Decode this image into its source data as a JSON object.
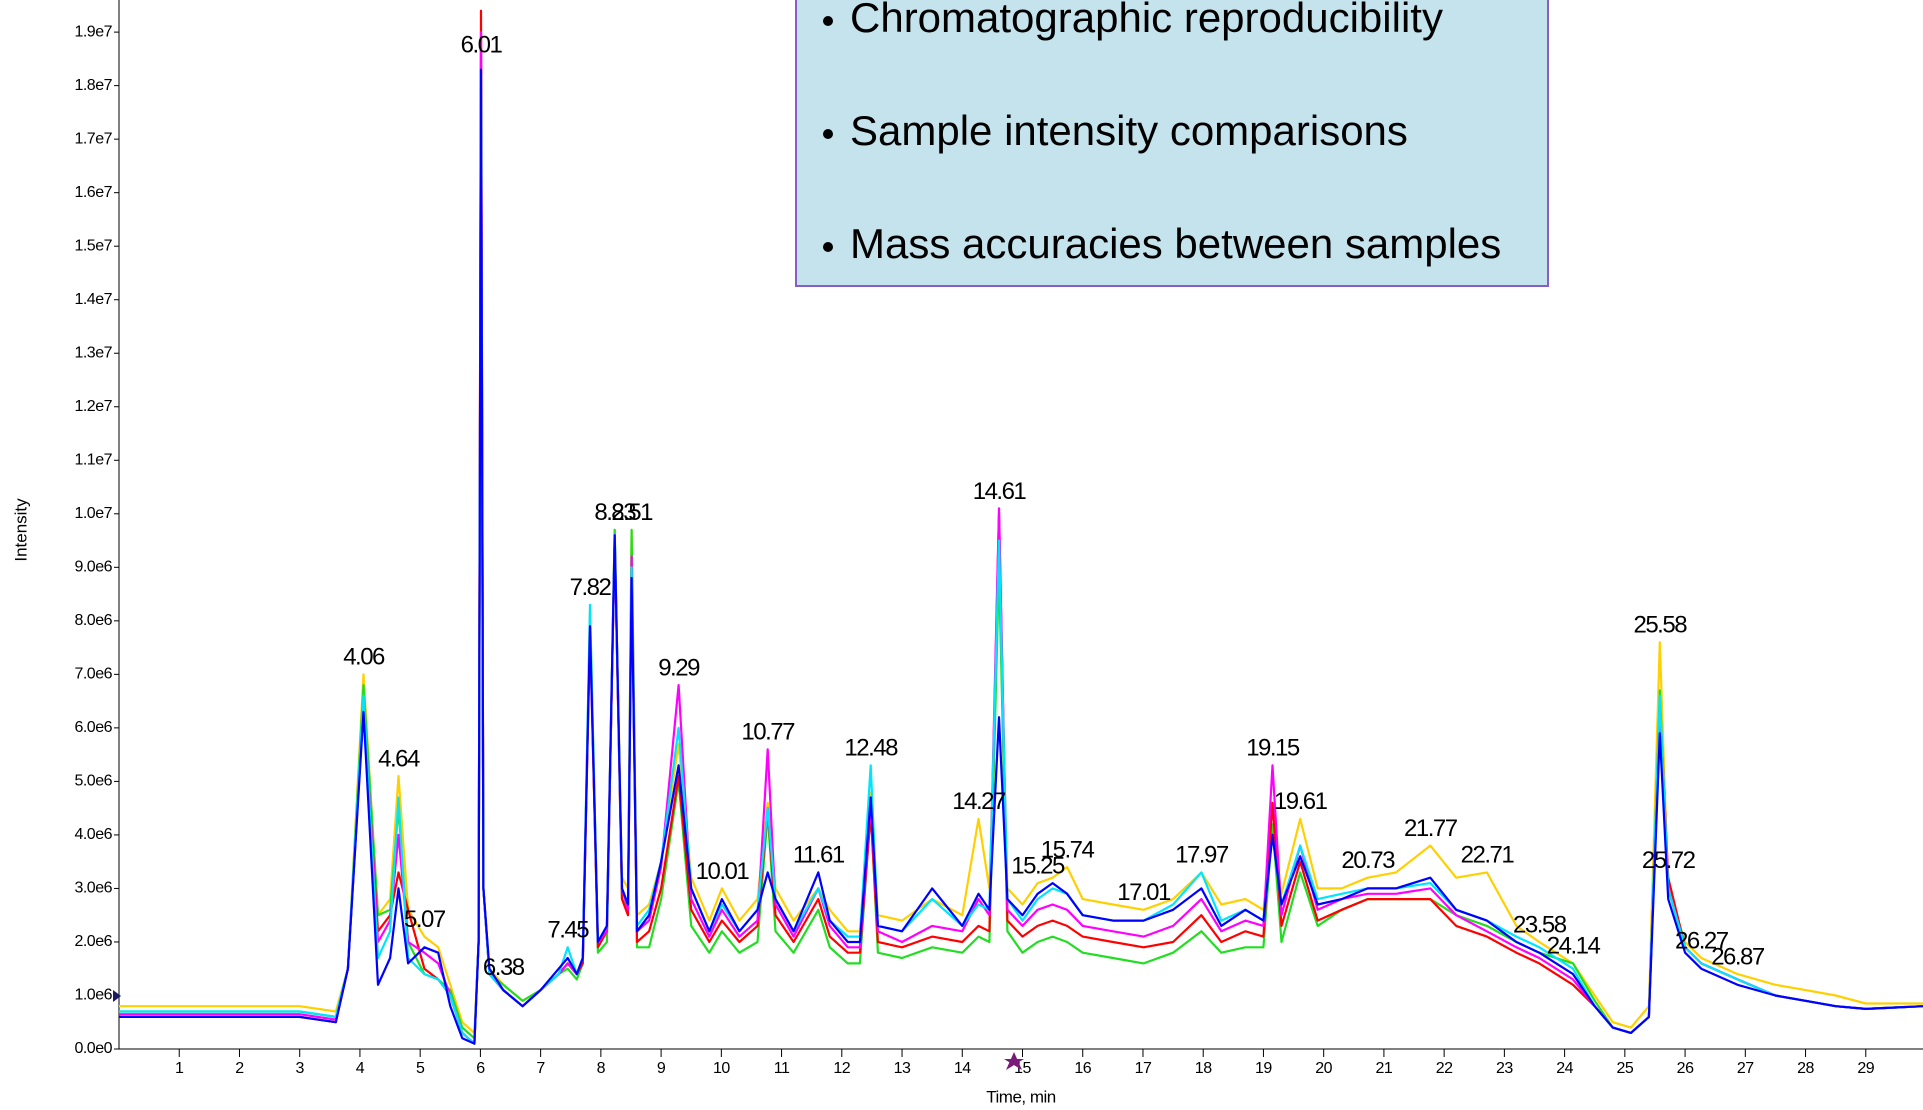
{
  "chart_data": {
    "type": "line",
    "x_label": "Time, min",
    "y_label": "Intensity",
    "xlim": [
      0,
      29.95
    ],
    "ylim": [
      0,
      19600000.0
    ],
    "xticks": [
      1,
      2,
      3,
      4,
      5,
      6,
      7,
      8,
      9,
      10,
      11,
      12,
      13,
      14,
      15,
      16,
      17,
      18,
      19,
      20,
      21,
      22,
      23,
      24,
      25,
      26,
      27,
      28,
      29
    ],
    "yticks": [
      {
        "value": 0,
        "label": "0.0e0"
      },
      {
        "value": 1000000.0,
        "label": "1.0e6"
      },
      {
        "value": 2000000.0,
        "label": "2.0e6"
      },
      {
        "value": 3000000.0,
        "label": "3.0e6"
      },
      {
        "value": 4000000.0,
        "label": "4.0e6"
      },
      {
        "value": 5000000.0,
        "label": "5.0e6"
      },
      {
        "value": 6000000.0,
        "label": "6.0e6"
      },
      {
        "value": 7000000.0,
        "label": "7.0e6"
      },
      {
        "value": 8000000.0,
        "label": "8.0e6"
      },
      {
        "value": 9000000.0,
        "label": "9.0e6"
      },
      {
        "value": 10000000.0,
        "label": "1.0e7"
      },
      {
        "value": 11000000.0,
        "label": "1.1e7"
      },
      {
        "value": 12000000.0,
        "label": "1.2e7"
      },
      {
        "value": 13000000.0,
        "label": "1.3e7"
      },
      {
        "value": 14000000.0,
        "label": "1.4e7"
      },
      {
        "value": 15000000.0,
        "label": "1.5e7"
      },
      {
        "value": 16000000.0,
        "label": "1.6e7"
      },
      {
        "value": 17000000.0,
        "label": "1.7e7"
      },
      {
        "value": 18000000.0,
        "label": "1.8e7"
      },
      {
        "value": 19000000.0,
        "label": "1.9e7"
      }
    ],
    "x": [
      0,
      1,
      2,
      3,
      3.6,
      3.8,
      4.06,
      4.3,
      4.5,
      4.64,
      4.8,
      5.07,
      5.3,
      5.5,
      5.7,
      5.9,
      5.97,
      6.01,
      6.05,
      6.15,
      6.38,
      6.7,
      7.0,
      7.3,
      7.45,
      7.6,
      7.7,
      7.82,
      7.95,
      8.1,
      8.23,
      8.35,
      8.45,
      8.51,
      8.6,
      8.8,
      9.0,
      9.29,
      9.5,
      9.8,
      10.01,
      10.3,
      10.6,
      10.77,
      10.9,
      11.2,
      11.61,
      11.8,
      12.1,
      12.3,
      12.48,
      12.6,
      13.0,
      13.5,
      14.0,
      14.27,
      14.45,
      14.61,
      14.75,
      15.0,
      15.25,
      15.5,
      15.74,
      16.0,
      16.5,
      17.01,
      17.5,
      17.97,
      18.3,
      18.7,
      19.0,
      19.15,
      19.3,
      19.61,
      19.9,
      20.3,
      20.73,
      21.2,
      21.77,
      22.2,
      22.71,
      23.2,
      23.58,
      24.14,
      24.5,
      24.8,
      25.1,
      25.4,
      25.58,
      25.72,
      26.0,
      26.27,
      26.87,
      27.5,
      28.0,
      28.5,
      29.0,
      29.95
    ],
    "series": [
      {
        "color": "#ffd000",
        "values": [
          800000.0,
          800000.0,
          800000.0,
          800000.0,
          700000.0,
          1500000.0,
          7000000.0,
          2500000.0,
          2800000.0,
          5100000.0,
          2600000.0,
          2100000.0,
          1900000.0,
          1200000.0,
          500000.0,
          300000.0,
          2000000.0,
          18500000.0,
          3000000.0,
          1500000.0,
          1200000.0,
          900000.0,
          1100000.0,
          1400000.0,
          1600000.0,
          1400000.0,
          1700000.0,
          8200000.0,
          2000000.0,
          2300000.0,
          9700000.0,
          3200000.0,
          3000000.0,
          9700000.0,
          2500000.0,
          2700000.0,
          3500000.0,
          5700000.0,
          3200000.0,
          2400000.0,
          3000000.0,
          2400000.0,
          2800000.0,
          4600000.0,
          3000000.0,
          2400000.0,
          3000000.0,
          2600000.0,
          2200000.0,
          2200000.0,
          4800000.0,
          2500000.0,
          2400000.0,
          2800000.0,
          2500000.0,
          4300000.0,
          3000000.0,
          8900000.0,
          3000000.0,
          2700000.0,
          3100000.0,
          3200000.0,
          3400000.0,
          2800000.0,
          2700000.0,
          2600000.0,
          2800000.0,
          3300000.0,
          2700000.0,
          2800000.0,
          2600000.0,
          4200000.0,
          2900000.0,
          4300000.0,
          3000000.0,
          3000000.0,
          3200000.0,
          3300000.0,
          3800000.0,
          3200000.0,
          3300000.0,
          2300000.0,
          2000000.0,
          1600000.0,
          1000000.0,
          500000.0,
          400000.0,
          800000.0,
          7600000.0,
          3000000.0,
          2000000.0,
          1700000.0,
          1400000.0,
          1200000.0,
          1100000.0,
          1000000.0,
          850000.0,
          850000.0
        ]
      },
      {
        "color": "#22dd22",
        "values": [
          700000.0,
          700000.0,
          700000.0,
          700000.0,
          600000.0,
          1500000.0,
          6800000.0,
          2500000.0,
          2600000.0,
          4500000.0,
          2000000.0,
          1400000.0,
          1300000.0,
          1100000.0,
          400000.0,
          200000.0,
          2000000.0,
          18000000.0,
          3000000.0,
          1400000.0,
          1200000.0,
          900000.0,
          1100000.0,
          1400000.0,
          1500000.0,
          1300000.0,
          1600000.0,
          8000000.0,
          1800000.0,
          2000000.0,
          9700000.0,
          2800000.0,
          2600000.0,
          9700000.0,
          1900000.0,
          1900000.0,
          2800000.0,
          5000000.0,
          2300000.0,
          1800000.0,
          2200000.0,
          1800000.0,
          2000000.0,
          4400000.0,
          2200000.0,
          1800000.0,
          2600000.0,
          1900000.0,
          1600000.0,
          1600000.0,
          4500000.0,
          1800000.0,
          1700000.0,
          1900000.0,
          1800000.0,
          2100000.0,
          2000000.0,
          9000000.0,
          2200000.0,
          1800000.0,
          2000000.0,
          2100000.0,
          2000000.0,
          1800000.0,
          1700000.0,
          1600000.0,
          1800000.0,
          2200000.0,
          1800000.0,
          1900000.0,
          1900000.0,
          4200000.0,
          2000000.0,
          3300000.0,
          2300000.0,
          2600000.0,
          2800000.0,
          2800000.0,
          2800000.0,
          2500000.0,
          2300000.0,
          2000000.0,
          1800000.0,
          1600000.0,
          900000.0,
          400000.0,
          300000.0,
          600000.0,
          6700000.0,
          3000000.0,
          1900000.0,
          1600000.0,
          1300000.0,
          1000000.0,
          900000.0,
          800000.0,
          750000.0,
          800000.0
        ]
      },
      {
        "color": "#ff0000",
        "values": [
          600000.0,
          600000.0,
          600000.0,
          600000.0,
          500000.0,
          1500000.0,
          6400000.0,
          2200000.0,
          2500000.0,
          3300000.0,
          2600000.0,
          1500000.0,
          1300000.0,
          1000000.0,
          300000.0,
          100000.0,
          2000000.0,
          19400000.0,
          3000000.0,
          1400000.0,
          1100000.0,
          800000.0,
          1100000.0,
          1400000.0,
          1600000.0,
          1400000.0,
          1600000.0,
          7800000.0,
          1900000.0,
          2200000.0,
          9500000.0,
          2800000.0,
          2500000.0,
          9000000.0,
          2000000.0,
          2200000.0,
          3000000.0,
          5100000.0,
          2600000.0,
          2000000.0,
          2400000.0,
          2000000.0,
          2300000.0,
          4500000.0,
          2500000.0,
          2000000.0,
          2800000.0,
          2100000.0,
          1800000.0,
          1800000.0,
          4400000.0,
          2000000.0,
          1900000.0,
          2100000.0,
          2000000.0,
          2300000.0,
          2200000.0,
          10000000.0,
          2400000.0,
          2100000.0,
          2300000.0,
          2400000.0,
          2300000.0,
          2100000.0,
          2000000.0,
          1900000.0,
          2000000.0,
          2500000.0,
          2000000.0,
          2200000.0,
          2100000.0,
          4600000.0,
          2300000.0,
          3500000.0,
          2400000.0,
          2600000.0,
          2800000.0,
          2800000.0,
          2800000.0,
          2300000.0,
          2100000.0,
          1800000.0,
          1600000.0,
          1200000.0,
          800000.0,
          400000.0,
          300000.0,
          600000.0,
          6500000.0,
          3200000.0,
          1900000.0,
          1600000.0,
          1300000.0,
          1000000.0,
          900000.0,
          800000.0,
          750000.0,
          800000.0
        ]
      },
      {
        "color": "#ff00ff",
        "values": [
          650000.0,
          650000.0,
          650000.0,
          650000.0,
          550000.0,
          1500000.0,
          6500000.0,
          2000000.0,
          2400000.0,
          4000000.0,
          2000000.0,
          1800000.0,
          1600000.0,
          1000000.0,
          300000.0,
          100000.0,
          2000000.0,
          19000000.0,
          3000000.0,
          1400000.0,
          1100000.0,
          800000.0,
          1100000.0,
          1400000.0,
          1600000.0,
          1400000.0,
          1700000.0,
          8000000.0,
          2000000.0,
          2200000.0,
          9500000.0,
          3000000.0,
          2600000.0,
          9200000.0,
          2200000.0,
          2400000.0,
          3400000.0,
          6800000.0,
          2800000.0,
          2100000.0,
          2600000.0,
          2100000.0,
          2400000.0,
          5600000.0,
          2700000.0,
          2100000.0,
          3000000.0,
          2300000.0,
          1900000.0,
          1900000.0,
          4600000.0,
          2200000.0,
          2000000.0,
          2300000.0,
          2200000.0,
          2800000.0,
          2500000.0,
          10100000.0,
          2600000.0,
          2300000.0,
          2600000.0,
          2700000.0,
          2600000.0,
          2300000.0,
          2200000.0,
          2100000.0,
          2300000.0,
          2800000.0,
          2200000.0,
          2400000.0,
          2300000.0,
          5300000.0,
          2500000.0,
          3800000.0,
          2600000.0,
          2800000.0,
          2900000.0,
          2900000.0,
          3000000.0,
          2500000.0,
          2200000.0,
          1900000.0,
          1700000.0,
          1300000.0,
          800000.0,
          400000.0,
          300000.0,
          600000.0,
          6400000.0,
          3000000.0,
          1900000.0,
          1600000.0,
          1300000.0,
          1000000.0,
          900000.0,
          800000.0,
          750000.0,
          800000.0
        ]
      },
      {
        "color": "#00e5ff",
        "values": [
          700000.0,
          700000.0,
          700000.0,
          700000.0,
          600000.0,
          1500000.0,
          6600000.0,
          1700000.0,
          2200000.0,
          4700000.0,
          1700000.0,
          1400000.0,
          1300000.0,
          1000000.0,
          300000.0,
          100000.0,
          2000000.0,
          18200000.0,
          3000000.0,
          1400000.0,
          1100000.0,
          800000.0,
          1100000.0,
          1400000.0,
          1900000.0,
          1400000.0,
          1700000.0,
          8300000.0,
          2000000.0,
          2300000.0,
          9600000.0,
          3000000.0,
          2700000.0,
          9000000.0,
          2300000.0,
          2600000.0,
          3500000.0,
          6000000.0,
          3000000.0,
          2200000.0,
          2700000.0,
          2200000.0,
          2600000.0,
          4500000.0,
          2800000.0,
          2200000.0,
          3000000.0,
          2400000.0,
          2100000.0,
          2100000.0,
          5300000.0,
          2300000.0,
          2200000.0,
          2800000.0,
          2300000.0,
          2700000.0,
          2600000.0,
          9500000.0,
          2800000.0,
          2400000.0,
          2800000.0,
          3000000.0,
          2900000.0,
          2500000.0,
          2400000.0,
          2400000.0,
          2700000.0,
          3300000.0,
          2400000.0,
          2600000.0,
          2400000.0,
          4000000.0,
          2700000.0,
          3800000.0,
          2800000.0,
          2900000.0,
          3000000.0,
          3000000.0,
          3100000.0,
          2600000.0,
          2400000.0,
          2100000.0,
          1900000.0,
          1500000.0,
          800000.0,
          400000.0,
          300000.0,
          600000.0,
          6600000.0,
          3000000.0,
          1900000.0,
          1600000.0,
          1300000.0,
          1000000.0,
          900000.0,
          800000.0,
          750000.0,
          800000.0
        ]
      },
      {
        "color": "#0000ff",
        "values": [
          600000.0,
          600000.0,
          600000.0,
          600000.0,
          500000.0,
          1500000.0,
          6300000.0,
          1200000.0,
          1700000.0,
          3000000.0,
          1600000.0,
          1900000.0,
          1800000.0,
          800000.0,
          200000.0,
          100000.0,
          2000000.0,
          18300000.0,
          3000000.0,
          1500000.0,
          1100000.0,
          800000.0,
          1100000.0,
          1500000.0,
          1700000.0,
          1400000.0,
          1700000.0,
          7900000.0,
          2000000.0,
          2300000.0,
          9600000.0,
          3000000.0,
          2700000.0,
          8800000.0,
          2200000.0,
          2500000.0,
          3500000.0,
          5300000.0,
          3000000.0,
          2200000.0,
          2800000.0,
          2200000.0,
          2600000.0,
          3300000.0,
          2800000.0,
          2200000.0,
          3300000.0,
          2400000.0,
          2000000.0,
          2000000.0,
          4700000.0,
          2300000.0,
          2200000.0,
          3000000.0,
          2300000.0,
          2900000.0,
          2600000.0,
          6200000.0,
          2800000.0,
          2500000.0,
          2900000.0,
          3100000.0,
          2900000.0,
          2500000.0,
          2400000.0,
          2400000.0,
          2600000.0,
          3000000.0,
          2300000.0,
          2600000.0,
          2400000.0,
          4000000.0,
          2700000.0,
          3600000.0,
          2700000.0,
          2800000.0,
          3000000.0,
          3000000.0,
          3200000.0,
          2600000.0,
          2400000.0,
          2000000.0,
          1800000.0,
          1400000.0,
          800000.0,
          400000.0,
          300000.0,
          600000.0,
          5900000.0,
          2800000.0,
          1800000.0,
          1500000.0,
          1200000.0,
          1000000.0,
          900000.0,
          800000.0,
          750000.0,
          800000.0
        ]
      }
    ],
    "peak_labels": [
      4.06,
      4.64,
      5.07,
      6.01,
      6.38,
      7.45,
      7.82,
      8.23,
      8.51,
      9.29,
      10.01,
      10.77,
      11.61,
      12.48,
      14.27,
      14.61,
      15.25,
      15.74,
      17.01,
      17.97,
      19.15,
      19.61,
      20.73,
      21.77,
      22.71,
      23.58,
      24.14,
      25.58,
      25.72,
      26.27,
      26.87
    ],
    "textbox_items": [
      "Chromatographic reproducibility",
      "Sample intensity comparisons",
      "Mass accuracies between samples"
    ]
  }
}
